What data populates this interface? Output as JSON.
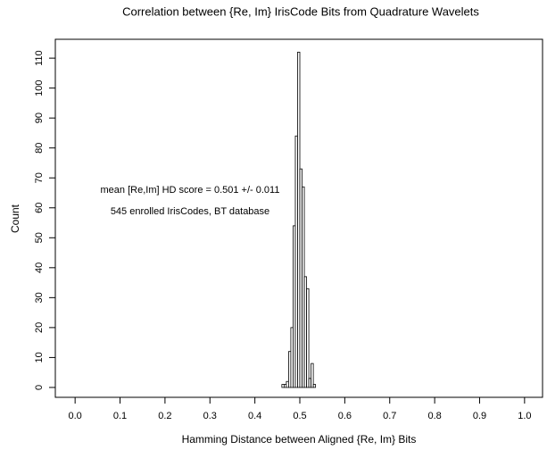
{
  "chart_data": {
    "type": "histogram",
    "title": "Correlation between {Re, Im} IrisCode Bits from Quadrature Wavelets",
    "xlabel": "Hamming Distance between Aligned {Re, Im} Bits",
    "ylabel": "Count",
    "annotations": [
      "mean [Re,Im] HD score = 0.501 +/- 0.011",
      "545 enrolled IrisCodes, BT database"
    ],
    "bins": [
      0.46,
      0.465,
      0.47,
      0.475,
      0.48,
      0.485,
      0.49,
      0.495,
      0.5,
      0.505,
      0.51,
      0.515,
      0.52,
      0.525,
      0.53,
      0.535
    ],
    "values": [
      1,
      1,
      2,
      12,
      20,
      54,
      84,
      112,
      73,
      67,
      37,
      33,
      3,
      8,
      1
    ],
    "xlim": [
      -0.044,
      1.04
    ],
    "ylim": [
      -3.3,
      116.3
    ],
    "xticks": [
      {
        "value": 0,
        "label": "0.0"
      },
      0.1,
      0.2,
      0.3,
      0.4,
      0.5,
      0.6,
      0.7,
      0.8,
      0.9,
      {
        "value": 1,
        "label": "1.0"
      }
    ],
    "yticks": [
      0,
      10,
      20,
      30,
      40,
      50,
      60,
      70,
      80,
      90,
      100,
      110
    ]
  }
}
